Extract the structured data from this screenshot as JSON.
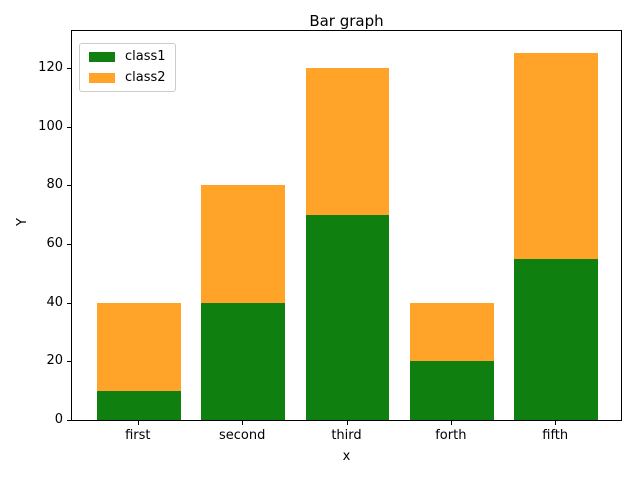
{
  "figure": {
    "background": "#ffffff"
  },
  "chart_data": {
    "type": "bar",
    "stacked": true,
    "title": "Bar graph",
    "xlabel": "x",
    "ylabel": "Y",
    "categories": [
      "first",
      "second",
      "third",
      "forth",
      "fifth"
    ],
    "series": [
      {
        "name": "class1",
        "color": "#0f800f",
        "values": [
          10,
          40,
          70,
          20,
          55
        ]
      },
      {
        "name": "class2",
        "color": "#ffa428",
        "values": [
          30,
          40,
          50,
          20,
          70
        ]
      }
    ],
    "totals": [
      40,
      80,
      120,
      40,
      125
    ],
    "y_ticks": [
      0,
      20,
      40,
      60,
      80,
      100,
      120
    ],
    "ylim": [
      0,
      133.3
    ],
    "xlim_units": [
      -0.64,
      4.64
    ],
    "bar_width_units": 0.8,
    "grid": false,
    "legend": {
      "position": "upper-left",
      "entries": [
        "class1",
        "class2"
      ]
    }
  }
}
